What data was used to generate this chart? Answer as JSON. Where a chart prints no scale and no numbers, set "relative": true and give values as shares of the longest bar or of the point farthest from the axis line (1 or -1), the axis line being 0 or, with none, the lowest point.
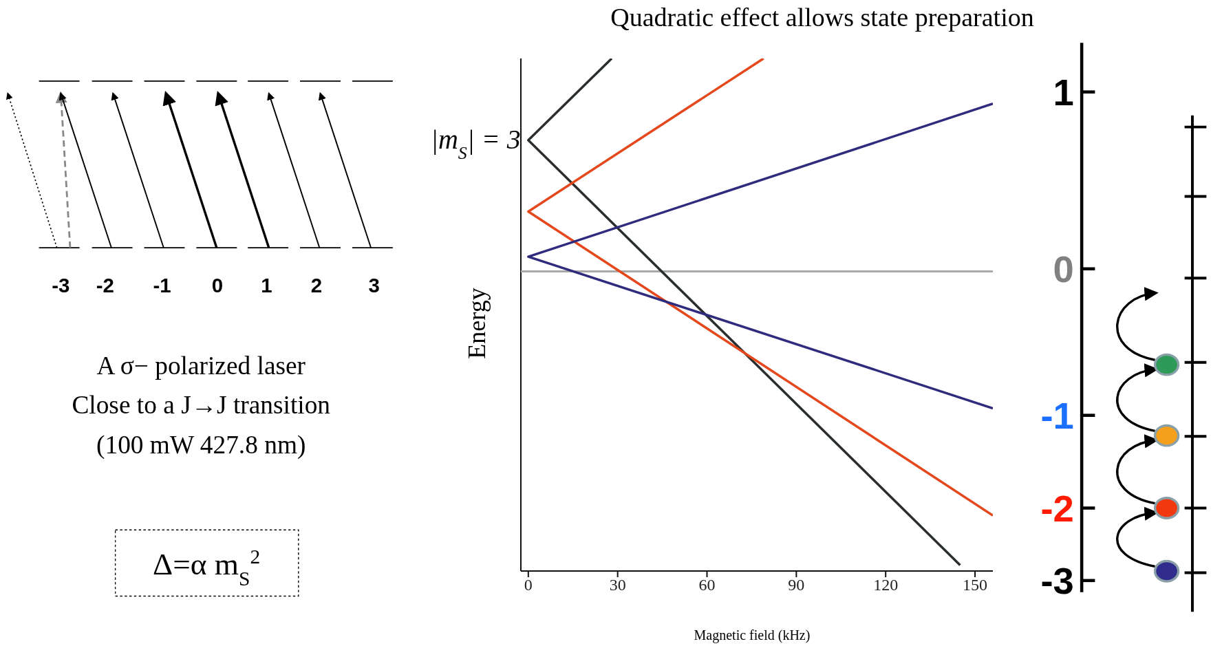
{
  "chart_data": {
    "type": "line",
    "title": "Quadratic effect allows state preparation",
    "xlabel": "Magnetic field (kHz)",
    "ylabel": "Energy",
    "relative": true,
    "xlim": [
      -2.5,
      156
    ],
    "xticks": [
      0,
      30,
      60,
      90,
      120,
      150
    ],
    "series": [
      {
        "color": "#2a2e2e",
        "x": [
          28,
          0,
          145
        ],
        "values": [
          0.725,
          0.447,
          -1
        ]
      },
      {
        "color": "#e4481c",
        "x": [
          79,
          0,
          156
        ],
        "values": [
          0.725,
          0.204,
          -0.831
        ]
      },
      {
        "color": "#2f2c7e",
        "x": [
          156,
          0,
          156
        ],
        "values": [
          0.571,
          0.05,
          -0.466
        ]
      }
    ],
    "ref_lines": [
      {
        "axis": "y",
        "value": 0,
        "color": "#a8a8a8"
      }
    ],
    "annotations": [
      {
        "text": "|m$_{S}$| = 3",
        "x": 0,
        "y": 0.447
      },
      "-3",
      "-2",
      "-1",
      "0",
      "1",
      "2",
      "3",
      "A σ− polarized laser",
      "Close to a J→J transition",
      "(100 mW 427.8 nm)",
      "Δ=α m$_{S}$$^{2}$",
      "1",
      "0",
      "-1",
      "-2",
      "-3"
    ]
  }
}
